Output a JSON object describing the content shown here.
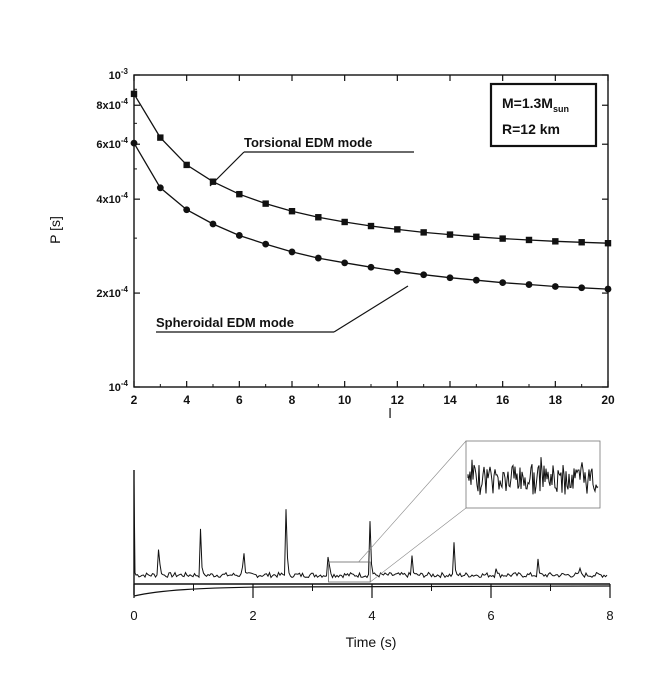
{
  "chart_data": [
    {
      "type": "line",
      "xlabel": "l",
      "ylabel": "P [s]",
      "yscale": "log",
      "xlim": [
        2,
        20
      ],
      "ylim": [
        0.0001,
        0.001
      ],
      "xticks": [
        "2",
        "4",
        "6",
        "8",
        "10",
        "12",
        "14",
        "16",
        "18",
        "20"
      ],
      "yticks": [
        {
          "base": "10",
          "exp": "-3",
          "value": 0.001
        },
        {
          "base": "8x10",
          "exp": "-4",
          "value": 0.0008
        },
        {
          "base": "6x10",
          "exp": "-4",
          "value": 0.0006
        },
        {
          "base": "4x10",
          "exp": "-4",
          "value": 0.0004
        },
        {
          "base": "2x10",
          "exp": "-4",
          "value": 0.0002
        },
        {
          "base": "10",
          "exp": "-4",
          "value": 0.0001
        }
      ],
      "box": {
        "line1": "M=1.3M",
        "line1_sub": "sun",
        "line2": "R=12 km"
      },
      "annotations": [
        {
          "text": "Torsional EDM mode",
          "series": "torsional"
        },
        {
          "text": "Spheroidal EDM mode",
          "series": "spheroidal"
        }
      ],
      "x": [
        2,
        3,
        4,
        5,
        6,
        7,
        8,
        9,
        10,
        11,
        12,
        13,
        14,
        15,
        16,
        17,
        18,
        19,
        20
      ],
      "series": [
        {
          "key": "torsional",
          "marker": "square",
          "values": [
            0.00087,
            0.00063,
            0.000515,
            0.000455,
            0.000415,
            0.000387,
            0.000366,
            0.00035,
            0.000338,
            0.000328,
            0.00032,
            0.000313,
            0.000308,
            0.000303,
            0.000299,
            0.000296,
            0.000293,
            0.000291,
            0.000289
          ]
        },
        {
          "key": "spheroidal",
          "marker": "circle",
          "values": [
            0.000605,
            0.000435,
            0.00037,
            0.000333,
            0.000306,
            0.000287,
            0.000271,
            0.000259,
            0.00025,
            0.000242,
            0.000235,
            0.000229,
            0.000224,
            0.00022,
            0.000216,
            0.000213,
            0.00021,
            0.000208,
            0.000206
          ]
        }
      ]
    },
    {
      "type": "line",
      "xlabel": "Time (s)",
      "xlim": [
        0,
        8
      ],
      "xticks": [
        "0",
        "2",
        "4",
        "6",
        "8"
      ],
      "pulses": [
        {
          "t": 0.42,
          "h": 0.48
        },
        {
          "t": 1.12,
          "h": 0.58
        },
        {
          "t": 1.84,
          "h": 0.5
        },
        {
          "t": 2.56,
          "h": 1.0
        },
        {
          "t": 3.27,
          "h": 0.38
        },
        {
          "t": 3.97,
          "h": 0.73
        },
        {
          "t": 4.67,
          "h": 0.26
        },
        {
          "t": 5.38,
          "h": 0.4
        },
        {
          "t": 6.09,
          "h": 0.1
        },
        {
          "t": 6.79,
          "h": 0.18
        },
        {
          "t": 7.49,
          "h": 0.12
        }
      ],
      "inset_range": [
        3.27,
        3.97
      ]
    }
  ]
}
